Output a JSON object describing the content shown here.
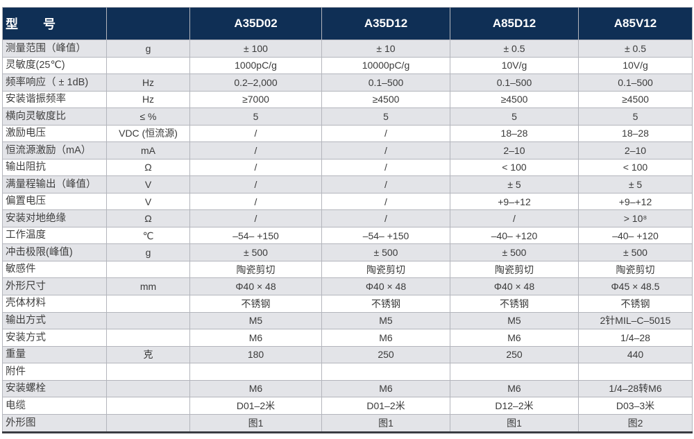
{
  "colors": {
    "header_bg": "#0f2f55",
    "header_text": "#ffffff",
    "row_alt_bg": "#e3e4e8",
    "row_bg": "#ffffff",
    "grid_line": "#b3b5bc",
    "text": "#3a3a3a"
  },
  "table": {
    "title_cell": "型　　号",
    "unit_header": "",
    "models": [
      "A35D02",
      "A35D12",
      "A85D12",
      "A85V12"
    ],
    "rows": [
      {
        "label": "测量范围（峰值）",
        "unit": "g",
        "values": [
          "± 100",
          "± 10",
          "± 0.5",
          "± 0.5"
        ]
      },
      {
        "label": "灵敏度(25℃)",
        "unit": "",
        "values": [
          "1000pC/g",
          "10000pC/g",
          "10V/g",
          "10V/g"
        ]
      },
      {
        "label": "频率响应（ ± 1dB)",
        "unit": "Hz",
        "values": [
          "0.2–2,000",
          "0.1–500",
          "0.1–500",
          "0.1–500"
        ]
      },
      {
        "label": "安装谐振频率",
        "unit": "Hz",
        "values": [
          "≥7000",
          "≥4500",
          "≥4500",
          "≥4500"
        ]
      },
      {
        "label": "横向灵敏度比",
        "unit": "≤ %",
        "values": [
          "5",
          "5",
          "5",
          "5"
        ]
      },
      {
        "label": "激励电压",
        "unit": "VDC (恒流源)",
        "values": [
          "/",
          "/",
          "18–28",
          "18–28"
        ]
      },
      {
        "label": "恒流源激励（mA）",
        "unit": "mA",
        "values": [
          "/",
          "/",
          "2–10",
          "2–10"
        ]
      },
      {
        "label": "输出阻抗",
        "unit": "Ω",
        "values": [
          "/",
          "/",
          "< 100",
          "< 100"
        ]
      },
      {
        "label": "满量程输出（峰值）",
        "unit": "V",
        "values": [
          "/",
          "/",
          "± 5",
          "± 5"
        ]
      },
      {
        "label": "偏置电压",
        "unit": "V",
        "values": [
          "/",
          "/",
          "+9–+12",
          "+9–+12"
        ]
      },
      {
        "label": "安装对地绝缘",
        "unit": "Ω",
        "values": [
          "/",
          "/",
          "/",
          "> 10⁸"
        ]
      },
      {
        "label": "工作温度",
        "unit": "℃",
        "values": [
          "–54– +150",
          "–54– +150",
          "–40– +120",
          "–40– +120"
        ]
      },
      {
        "label": "冲击极限(峰值)",
        "unit": "g",
        "values": [
          "± 500",
          "± 500",
          "± 500",
          "± 500"
        ]
      },
      {
        "label": "敏感件",
        "unit": "",
        "values": [
          "陶瓷剪切",
          "陶瓷剪切",
          "陶瓷剪切",
          "陶瓷剪切"
        ]
      },
      {
        "label": "外形尺寸",
        "unit": "mm",
        "values": [
          "Φ40 × 48",
          "Φ40 × 48",
          "Φ40 × 48",
          "Φ45 × 48.5"
        ]
      },
      {
        "label": "壳体材料",
        "unit": "",
        "values": [
          "不锈钢",
          "不锈钢",
          "不锈钢",
          "不锈钢"
        ]
      },
      {
        "label": "输出方式",
        "unit": "",
        "values": [
          "M5",
          "M5",
          "M5",
          "2针MIL–C–5015"
        ]
      },
      {
        "label": "安装方式",
        "unit": "",
        "values": [
          "M6",
          "M6",
          "M6",
          "1/4–28"
        ]
      },
      {
        "label": "重量",
        "unit": "克",
        "values": [
          "180",
          "250",
          "250",
          "440"
        ]
      },
      {
        "label": "附件",
        "unit": "",
        "values": [
          "",
          "",
          "",
          ""
        ]
      },
      {
        "label": "安装螺栓",
        "unit": "",
        "values": [
          "M6",
          "M6",
          "M6",
          "1/4–28转M6"
        ]
      },
      {
        "label": "电缆",
        "unit": "",
        "values": [
          "D01–2米",
          "D01–2米",
          "D12–2米",
          "D03–3米"
        ]
      },
      {
        "label": "外形图",
        "unit": "",
        "values": [
          "图1",
          "图1",
          "图1",
          "图2"
        ]
      }
    ]
  }
}
